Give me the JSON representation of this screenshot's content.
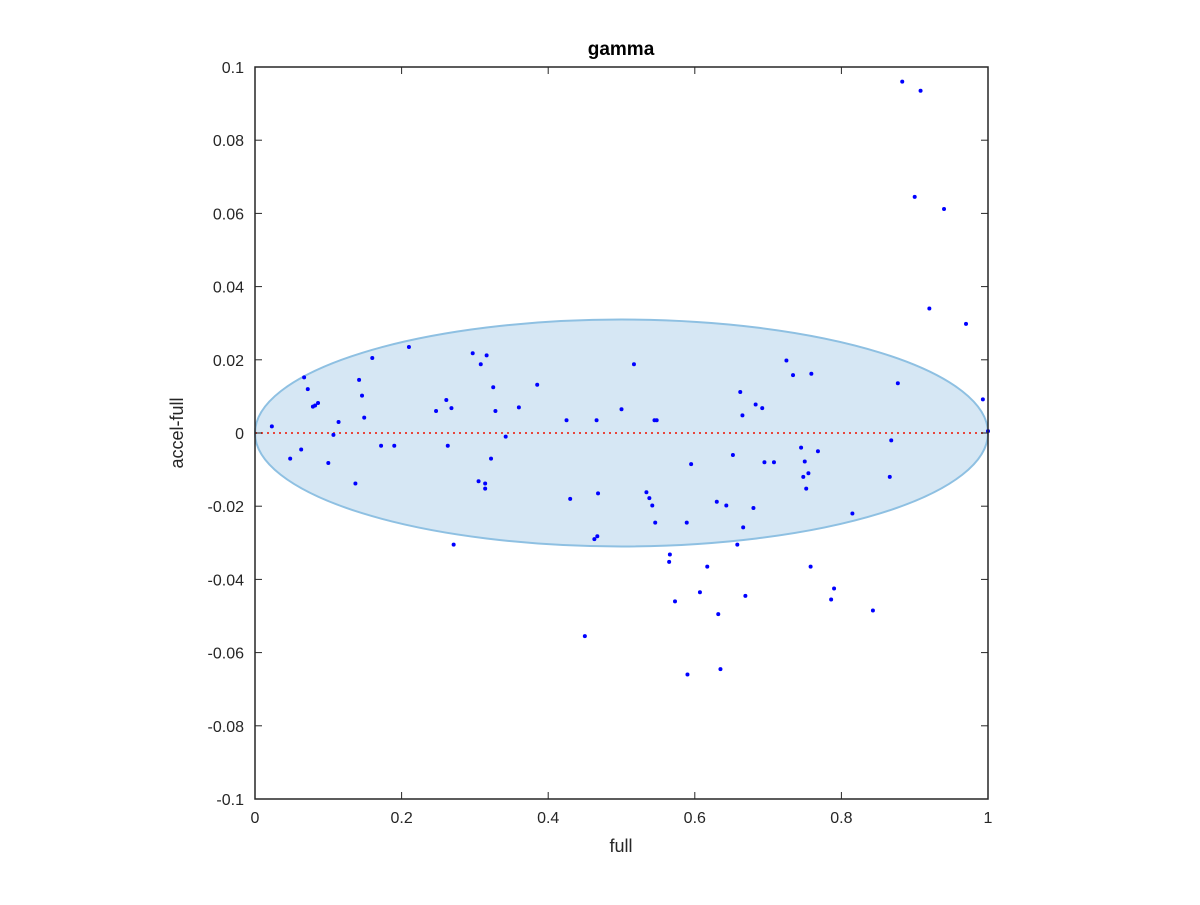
{
  "colors": {
    "points": "#0000ff",
    "ellipse_fill": "#d6e7f4",
    "ellipse_stroke": "#8ec0e2",
    "zero_line": "#e8463c",
    "axes": "#262626"
  },
  "chart_data": {
    "type": "scatter",
    "title": "gamma",
    "xlabel": "full",
    "ylabel": "accel-full",
    "xlim": [
      0,
      1
    ],
    "ylim": [
      -0.1,
      0.1
    ],
    "grid": false,
    "legend": "none",
    "x_ticks": [
      "0",
      "0.2",
      "0.4",
      "0.6",
      "0.8",
      "1"
    ],
    "y_ticks": [
      "-0.1",
      "-0.08",
      "-0.06",
      "-0.04",
      "-0.02",
      "0",
      "0.02",
      "0.04",
      "0.06",
      "0.08",
      "0.1"
    ],
    "reference_line": {
      "y": 0,
      "style": "dotted"
    },
    "ellipse": {
      "cx": 0.5,
      "cy": 0.0,
      "rx": 0.5,
      "ry": 0.031
    },
    "series": [
      {
        "x": [
          0.883,
          0.908,
          0.9,
          0.94,
          0.92,
          0.97,
          0.993,
          1.0,
          0.877,
          0.868,
          0.866,
          0.815,
          0.843,
          0.79,
          0.786,
          0.758,
          0.759,
          0.75,
          0.745,
          0.748,
          0.752,
          0.734,
          0.725,
          0.768,
          0.755,
          0.708,
          0.695,
          0.692,
          0.683,
          0.68,
          0.666,
          0.662,
          0.665,
          0.669,
          0.652,
          0.658,
          0.643,
          0.63,
          0.632,
          0.607,
          0.617,
          0.595,
          0.589,
          0.59,
          0.635,
          0.573,
          0.566,
          0.565,
          0.545,
          0.546,
          0.542,
          0.538,
          0.534,
          0.548,
          0.517,
          0.5,
          0.468,
          0.467,
          0.466,
          0.463,
          0.425,
          0.43,
          0.45,
          0.385,
          0.36,
          0.342,
          0.328,
          0.325,
          0.322,
          0.316,
          0.314,
          0.314,
          0.308,
          0.305,
          0.297,
          0.271,
          0.268,
          0.263,
          0.261,
          0.247,
          0.21,
          0.19,
          0.172,
          0.16,
          0.149,
          0.146,
          0.142,
          0.137,
          0.114,
          0.107,
          0.1,
          0.086,
          0.082,
          0.079,
          0.072,
          0.067,
          0.063,
          0.048,
          0.023
        ],
        "y": [
          0.096,
          0.0935,
          0.0645,
          0.0612,
          0.034,
          0.0298,
          0.0092,
          0.0005,
          0.0136,
          -0.002,
          -0.012,
          -0.022,
          -0.0485,
          -0.0425,
          -0.0455,
          -0.0365,
          0.0162,
          -0.0078,
          -0.004,
          -0.012,
          -0.0152,
          0.0158,
          0.0198,
          -0.005,
          -0.011,
          -0.008,
          -0.008,
          0.0068,
          0.0078,
          -0.0205,
          -0.0258,
          0.0112,
          0.0048,
          -0.0445,
          -0.006,
          -0.0305,
          -0.0198,
          -0.0188,
          -0.0495,
          -0.0435,
          -0.0365,
          -0.0085,
          -0.0245,
          -0.066,
          -0.0645,
          -0.046,
          -0.0332,
          -0.0352,
          0.0035,
          -0.0245,
          -0.0198,
          -0.0178,
          -0.0162,
          0.0035,
          0.0188,
          0.0065,
          -0.0165,
          -0.0282,
          0.0035,
          -0.029,
          0.0035,
          -0.018,
          -0.0555,
          0.0132,
          0.007,
          -0.001,
          0.006,
          0.0125,
          -0.007,
          0.0212,
          -0.0138,
          -0.0152,
          0.0188,
          -0.0132,
          0.0218,
          -0.0305,
          0.0068,
          -0.0035,
          0.009,
          0.006,
          0.0235,
          -0.0035,
          -0.0035,
          0.0205,
          0.0042,
          0.0102,
          0.0145,
          -0.0138,
          0.003,
          -0.0005,
          -0.0082,
          0.0082,
          0.0075,
          0.0072,
          0.012,
          0.0152,
          -0.0045,
          -0.007,
          0.0018
        ]
      }
    ]
  }
}
